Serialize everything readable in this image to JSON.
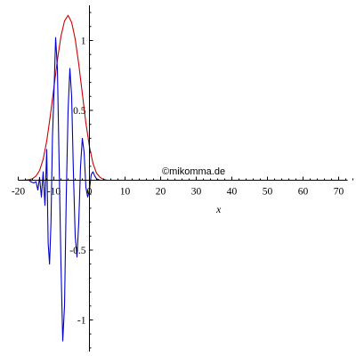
{
  "chart_data": {
    "type": "line",
    "title": "",
    "xlabel": "x",
    "ylabel": "",
    "xlim": [
      -20,
      70
    ],
    "ylim": [
      -1.2,
      1.2
    ],
    "x_ticks": [
      -20,
      -10,
      0,
      10,
      20,
      30,
      40,
      50,
      60,
      70
    ],
    "x_tick_labels": [
      "-20",
      "-10",
      "0",
      "10",
      "20",
      "30",
      "40",
      "50",
      "60",
      "70"
    ],
    "y_ticks": [
      -1,
      -0.5,
      0.5,
      1
    ],
    "y_tick_labels": [
      "-1",
      "-0.5",
      "0.5",
      "1"
    ],
    "grid": false,
    "series": [
      {
        "color": "#cc0000",
        "x": [
          -20,
          -19,
          -18,
          -17,
          -16,
          -15,
          -14,
          -13,
          -12,
          -11,
          -10,
          -9,
          -8,
          -7,
          -6,
          -5,
          -4,
          -3,
          -2,
          -1,
          0,
          1,
          2,
          3,
          4,
          5,
          10,
          20,
          30,
          40,
          50,
          60,
          70
        ],
        "values": [
          0,
          0,
          0.001,
          0.004,
          0.011,
          0.03,
          0.07,
          0.15,
          0.28,
          0.46,
          0.66,
          0.86,
          1.03,
          1.14,
          1.18,
          1.13,
          1.01,
          0.83,
          0.62,
          0.41,
          0.24,
          0.12,
          0.05,
          0.02,
          0.006,
          0,
          0,
          0,
          0,
          0,
          0,
          0,
          0
        ]
      },
      {
        "color": "#0000cc",
        "x": [
          -20,
          -17,
          -16.5,
          -15.6,
          -15,
          -14.5,
          -14,
          -13.5,
          -13,
          -12.5,
          -12,
          -11.6,
          -11.2,
          -10.8,
          -10.4,
          -10,
          -9.5,
          -9,
          -8.5,
          -8,
          -7.5,
          -7,
          -6.5,
          -6,
          -5.5,
          -5,
          -4.5,
          -4,
          -3.5,
          -3,
          -2.5,
          -2,
          -1.5,
          -1,
          -0.5,
          0,
          0.5,
          1,
          1.5,
          2,
          3,
          5,
          10,
          20,
          30,
          40,
          50,
          60,
          70
        ],
        "values": [
          0,
          0,
          -0.01,
          -0.02,
          -0.01,
          -0.07,
          0.02,
          -0.12,
          0.06,
          -0.18,
          0.22,
          -0.45,
          -0.6,
          -0.3,
          0.3,
          0.6,
          1.02,
          0.8,
          0.1,
          -0.6,
          -1.15,
          -0.9,
          -0.1,
          0.5,
          0.8,
          0.6,
          0.05,
          -0.4,
          -0.55,
          -0.3,
          0.1,
          0.3,
          0.2,
          -0.05,
          -0.12,
          -0.07,
          0.04,
          0.06,
          0.03,
          0.01,
          0,
          0,
          0,
          0,
          0,
          0,
          0,
          0,
          0
        ]
      }
    ]
  },
  "watermark": "©mikomma.de"
}
